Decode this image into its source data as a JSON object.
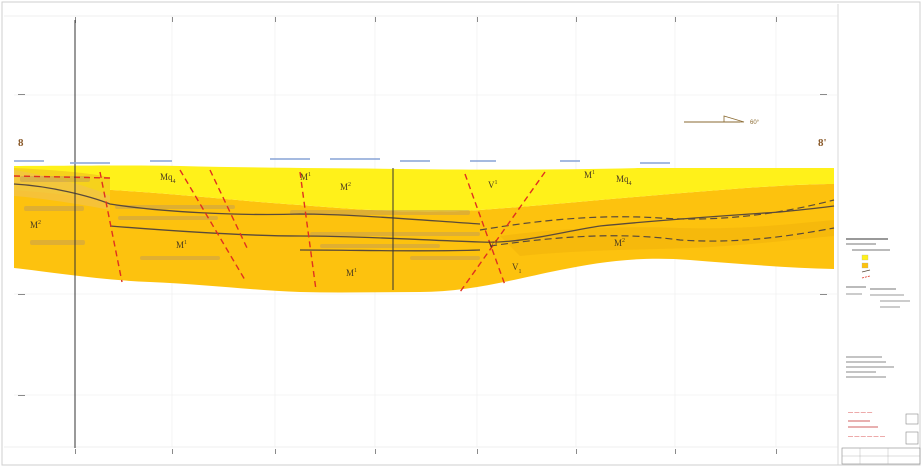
{
  "section": {
    "start_label": "8",
    "end_label": "8'",
    "north_arrow_label": "60°"
  },
  "units": [
    {
      "id": "mq1",
      "label": "Mq",
      "sub": "4"
    },
    {
      "id": "m2a",
      "label": "M",
      "sup": "2"
    },
    {
      "id": "m2b",
      "label": "M",
      "sup": "2"
    },
    {
      "id": "m1a",
      "label": "M",
      "sup": "1"
    },
    {
      "id": "m1b",
      "label": "M",
      "sup": "1"
    },
    {
      "id": "m1c",
      "label": "M",
      "sup": "1"
    },
    {
      "id": "m1d",
      "label": "M",
      "sup": "1"
    },
    {
      "id": "mq2",
      "label": "Mq",
      "sub": "4"
    },
    {
      "id": "m2c",
      "label": "M",
      "sup": "2"
    },
    {
      "id": "v1",
      "label": "V",
      "sup": "1"
    },
    {
      "id": "v2",
      "label": "V",
      "sup": "1"
    },
    {
      "id": "v3",
      "label": "V",
      "sub": "1"
    }
  ],
  "colors": {
    "upper_unit": "#fff11a",
    "lower_unit": "#fdc20e",
    "band": "#f8d24a",
    "fault": "#e03020",
    "contact": "#5a4a3a"
  },
  "titleblock": {
    "red_lines": [
      "— — — —",
      "— — — — — —"
    ]
  }
}
